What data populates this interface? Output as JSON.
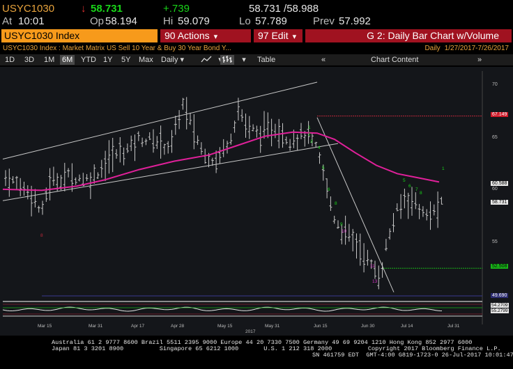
{
  "quote": {
    "ticker": "USYC1030",
    "change_arrow": "↓",
    "last": "58.731",
    "change": "+.739",
    "bid_ask": "58.731 /58.988",
    "at_label": "At",
    "at_time": "10:01",
    "op_label": "Op",
    "op_value": "58.194",
    "hi_label": "Hi",
    "hi_value": "59.079",
    "lo_label": "Lo",
    "lo_value": "57.789",
    "prev_label": "Prev",
    "prev_value": "57.992"
  },
  "function_bar": {
    "security": "USYC1030 Index",
    "actions_label": "90 Actions",
    "edit_label": "97 Edit",
    "chart_title": "G 2: Daily Bar Chart w/Volume"
  },
  "subtitle": {
    "text": "USYC1030 Index : Market Matrix US Sell 10 Year & Buy 30 Year Bond Y...",
    "period_label": "Daily",
    "date_range": "1/27/2017-7/26/2017"
  },
  "toolbar": {
    "ranges": [
      "1D",
      "3D",
      "1M",
      "6M",
      "YTD",
      "1Y",
      "5Y",
      "Max"
    ],
    "active_range": "6M",
    "frequency": "Daily",
    "table_label": "Table",
    "chart_content_label": "Chart Content"
  },
  "chart": {
    "y_axis_ticks": [
      "70",
      "65",
      "60",
      "55"
    ],
    "x_axis_ticks": [
      "Mar 15",
      "Mar 31",
      "Apr 17",
      "Apr 28",
      "May 15",
      "May 31",
      "Jun 15",
      "Jun 30",
      "Jul 14",
      "Jul 31"
    ],
    "year_label": "2017",
    "price_tags": [
      {
        "text": "67.149",
        "color": "#d01a2a",
        "text_color": "#ffffff"
      },
      {
        "text": "60.588",
        "color": "#e8e8e8",
        "text_color": "#000000"
      },
      {
        "text": "58.731",
        "color": "#e8e8e8",
        "text_color": "#000000"
      },
      {
        "text": "52.508",
        "color": "#19b419",
        "text_color": "#000000"
      },
      {
        "text": "49.690",
        "color": "#2c2c70",
        "text_color": "#ffffff"
      }
    ],
    "lower_tags": [
      {
        "text": "54.2709",
        "color": "#e8e8e8"
      },
      {
        "text": "55.2799",
        "color": "#e8e8e8"
      }
    ],
    "td_labels": [
      {
        "text": "8",
        "color": "#c0283a"
      },
      {
        "text": "13",
        "color": "#c0283a"
      },
      {
        "text": "1",
        "color": "#19d619"
      },
      {
        "text": "2",
        "color": "#19d619"
      },
      {
        "text": "3",
        "color": "#19d619"
      },
      {
        "text": "4",
        "color": "#19d619"
      },
      {
        "text": "5",
        "color": "#19d619"
      },
      {
        "text": "6",
        "color": "#19d619"
      },
      {
        "text": "7",
        "color": "#19d619"
      },
      {
        "text": "8",
        "color": "#19d619"
      },
      {
        "text": "9",
        "color": "#19d619"
      },
      {
        "text": "10",
        "color": "#d838c8"
      },
      {
        "text": "11",
        "color": "#d838c8"
      },
      {
        "text": "12",
        "color": "#d838c8"
      },
      {
        "text": "13",
        "color": "#d838c8"
      }
    ],
    "colors": {
      "price_bars": "#c8c8c8",
      "moving_average": "#e0209a",
      "trendline": "#c8c8c8",
      "resistance": "#c0283a",
      "support": "#19b419"
    }
  },
  "footer": {
    "line1": "Australia 61 2 9777 8600 Brazil 5511 2395 9000 Europe 44 20 7330 7500 Germany 49 69 9204 1210 Hong Kong 852 2977 6000",
    "line2": "Japan 81 3 3201 8900          Singapore 65 6212 1000       U.S. 1 212 318 2000          Copyright 2017 Bloomberg Finance L.P.",
    "line3": "SN 461759 EDT  GMT-4:00 G819-1723-0 26-Jul-2017 10:01:47"
  }
}
